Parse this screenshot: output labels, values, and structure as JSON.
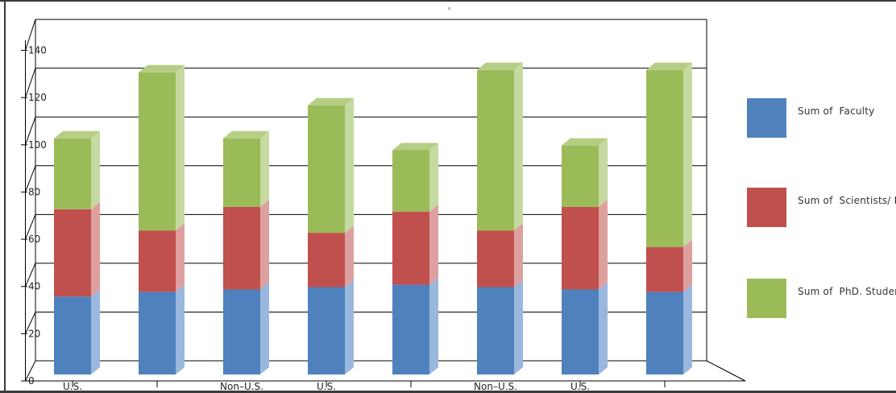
{
  "window": {
    "background": "#ffffff",
    "border_color": "#3b3b3b"
  },
  "chart_data": {
    "type": "bar",
    "stacked": true,
    "projection": "3d",
    "title": "",
    "xlabel": "",
    "ylabel": "",
    "ylim": [
      0,
      140
    ],
    "ytick_step": 20,
    "yticks": [
      "0",
      "20",
      "40",
      "60",
      "80",
      "100",
      "120",
      "140"
    ],
    "grid": true,
    "legend_position": "right",
    "categories": [
      "U.S.",
      "",
      "Non–U.S.",
      "U.S.",
      "",
      "Non–U.S.",
      "U.S.",
      ""
    ],
    "category_tick_flags": [
      true,
      true,
      false,
      true,
      true,
      false,
      true,
      true
    ],
    "series": [
      {
        "name": "Sum of  Faculty",
        "values": [
          33,
          35,
          36,
          37,
          38,
          37,
          36,
          35
        ],
        "colors": {
          "front": "#4f81bd",
          "side": "#9ab7dd",
          "top": "#7ea5d2"
        }
      },
      {
        "name": "Sum of  Scientists/ Po",
        "values": [
          37,
          26,
          35,
          23,
          31,
          24,
          35,
          19
        ],
        "colors": {
          "front": "#c0504d",
          "side": "#dda09e",
          "top": "#cb7472"
        }
      },
      {
        "name": "Sum of  PhD. Student",
        "values": [
          30,
          67,
          29,
          54,
          26,
          68,
          26,
          75
        ],
        "colors": {
          "front": "#9bbb59",
          "side": "#c6d9a0",
          "top": "#b7cd85"
        }
      }
    ],
    "totals": [
      100,
      128,
      100,
      114,
      95,
      129,
      97,
      129
    ],
    "axis_text_color": "#1f1f1f",
    "line_color": "#000000"
  },
  "legend": {
    "items": [
      {
        "label": "Sum of  Faculty"
      },
      {
        "label": "Sum of  Scientists/ Po"
      },
      {
        "label": "Sum of  PhD. Student"
      }
    ]
  }
}
